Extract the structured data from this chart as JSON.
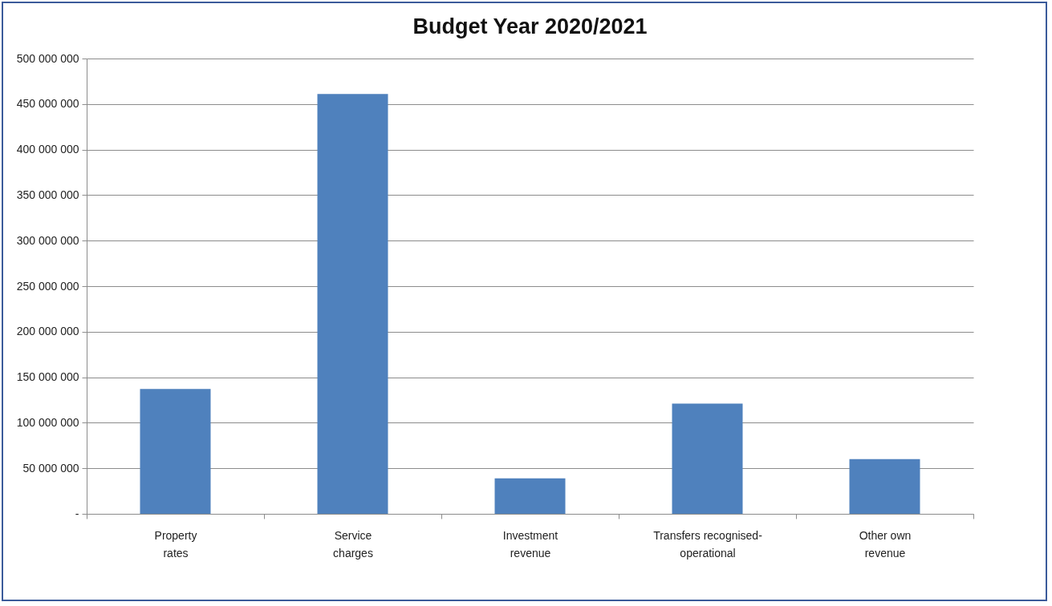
{
  "chart_data": {
    "type": "bar",
    "title": "Budget Year 2020/2021",
    "categories": [
      "Property rates",
      "Service charges",
      "Investment revenue",
      "Transfers recognised-operational",
      "Other own revenue"
    ],
    "values": [
      137000000,
      461000000,
      39000000,
      121000000,
      60000000
    ],
    "color": "#4f81bd",
    "ylim": [
      0,
      500000000
    ],
    "yticks": [
      {
        "value": 0,
        "label": "-"
      },
      {
        "value": 50000000,
        "label": "50 000 000"
      },
      {
        "value": 100000000,
        "label": "100 000 000"
      },
      {
        "value": 150000000,
        "label": "150 000 000"
      },
      {
        "value": 200000000,
        "label": "200 000 000"
      },
      {
        "value": 250000000,
        "label": "250 000 000"
      },
      {
        "value": 300000000,
        "label": "300 000 000"
      },
      {
        "value": 350000000,
        "label": "350 000 000"
      },
      {
        "value": 400000000,
        "label": "400 000 000"
      },
      {
        "value": 450000000,
        "label": "450 000 000"
      },
      {
        "value": 500000000,
        "label": "500 000 000"
      }
    ],
    "grid": "y"
  }
}
